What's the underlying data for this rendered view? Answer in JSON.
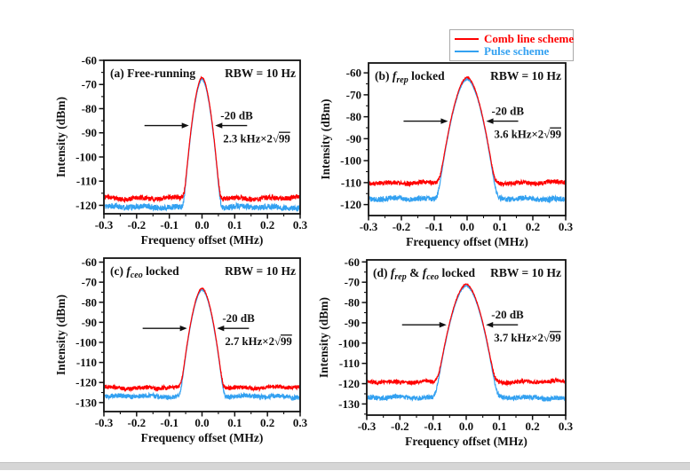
{
  "figure": {
    "background": "#ffffff",
    "colors": {
      "red": "#ff0000",
      "blue": "#33a1f1",
      "axis": "#111111"
    },
    "legend": {
      "items": [
        {
          "label": "Comb line scheme",
          "color_key": "red"
        },
        {
          "label": "Pulse scheme",
          "color_key": "blue"
        }
      ]
    },
    "xlabel": "Frequency offset (MHz)",
    "ylabel": "Intensity (dBm)",
    "rbw_label": "RBW = 10 Hz"
  },
  "chart_data": [
    {
      "type": "line",
      "panel": "a",
      "title_segments": [
        {
          "t": "(a) Free-running",
          "s": "p"
        }
      ],
      "rbw": "RBW = 10 Hz",
      "xlabel": "Frequency offset (MHz)",
      "ylabel": "Intensity (dBm)",
      "xlim": [
        -0.3,
        0.3
      ],
      "xticks": [
        "-0.3",
        "-0.2",
        "-0.1",
        "0.0",
        "0.1",
        "0.2",
        "0.3"
      ],
      "ylim": [
        -60,
        -123.5
      ],
      "yticks": [
        "-60",
        "-70",
        "-80",
        "-90",
        "-100",
        "-110",
        "-120"
      ],
      "grid": false,
      "peak_center_mhz": 0.0,
      "linewidth_khz": 2.3,
      "series": [
        {
          "name": "Pulse scheme",
          "color_key": "blue",
          "noise_floor_dbm": -120.8,
          "peak_dbm": -67.8
        },
        {
          "name": "Comb line scheme",
          "color_key": "red",
          "noise_floor_dbm": -117.0,
          "peak_dbm": -67.0
        }
      ],
      "annotation": {
        "line1": "-20 dB",
        "line2_segments": [
          {
            "t": "2.3 kHz×2",
            "s": "p"
          },
          {
            "t": "√",
            "s": "p"
          },
          {
            "t": "99",
            "s": "o"
          }
        ]
      }
    },
    {
      "type": "line",
      "panel": "b",
      "title_segments": [
        {
          "t": "(b) ",
          "s": "p"
        },
        {
          "t": "f",
          "s": "i"
        },
        {
          "t": "rep",
          "s": "sub"
        },
        {
          "t": " locked",
          "s": "p"
        }
      ],
      "rbw": "RBW = 10 Hz",
      "xlabel": "Frequency offset (MHz)",
      "ylabel": "Intensity (dBm)",
      "xlim": [
        -0.3,
        0.3
      ],
      "xticks": [
        "-0.3",
        "-0.2",
        "-0.1",
        "0.0",
        "0.1",
        "0.2",
        "0.3"
      ],
      "ylim": [
        -55.5,
        -125
      ],
      "yticks": [
        "-60",
        "-70",
        "-80",
        "-90",
        "-100",
        "-110",
        "-120"
      ],
      "grid": false,
      "peak_center_mhz": 0.0,
      "linewidth_khz": 3.6,
      "series": [
        {
          "name": "Pulse scheme",
          "color_key": "blue",
          "noise_floor_dbm": -117.5,
          "peak_dbm": -62.8
        },
        {
          "name": "Comb line scheme",
          "color_key": "red",
          "noise_floor_dbm": -110.0,
          "peak_dbm": -62.0
        }
      ],
      "annotation": {
        "line1": "-20 dB",
        "line2_segments": [
          {
            "t": "3.6 kHz×2",
            "s": "p"
          },
          {
            "t": "√",
            "s": "p"
          },
          {
            "t": "99",
            "s": "o"
          }
        ]
      }
    },
    {
      "type": "line",
      "panel": "c",
      "title_segments": [
        {
          "t": "(c) ",
          "s": "p"
        },
        {
          "t": "f",
          "s": "i"
        },
        {
          "t": "ceo",
          "s": "sub"
        },
        {
          "t": " locked",
          "s": "p"
        }
      ],
      "rbw": "RBW = 10 Hz",
      "xlabel": "Frequency offset (MHz)",
      "ylabel": "Intensity (dBm)",
      "xlim": [
        -0.3,
        0.3
      ],
      "xticks": [
        "-0.3",
        "-0.2",
        "-0.1",
        "0.0",
        "0.1",
        "0.2",
        "0.3"
      ],
      "ylim": [
        -58,
        -134.5
      ],
      "yticks": [
        "-60",
        "-70",
        "-80",
        "-90",
        "-100",
        "-110",
        "-120",
        "-130"
      ],
      "grid": false,
      "peak_center_mhz": 0.0,
      "linewidth_khz": 2.7,
      "series": [
        {
          "name": "Pulse scheme",
          "color_key": "blue",
          "noise_floor_dbm": -127.0,
          "peak_dbm": -73.8
        },
        {
          "name": "Comb line scheme",
          "color_key": "red",
          "noise_floor_dbm": -122.5,
          "peak_dbm": -73.0
        }
      ],
      "annotation": {
        "line1": "-20 dB",
        "line2_segments": [
          {
            "t": "2.7 kHz×2",
            "s": "p"
          },
          {
            "t": "√",
            "s": "p"
          },
          {
            "t": "99",
            "s": "o"
          }
        ]
      }
    },
    {
      "type": "line",
      "panel": "d",
      "title_segments": [
        {
          "t": "(d) ",
          "s": "p"
        },
        {
          "t": "f",
          "s": "i"
        },
        {
          "t": "rep",
          "s": "sub"
        },
        {
          "t": " & ",
          "s": "p"
        },
        {
          "t": "f",
          "s": "i"
        },
        {
          "t": "ceo",
          "s": "sub"
        },
        {
          "t": " locked",
          "s": "p"
        }
      ],
      "rbw": "RBW = 10 Hz",
      "xlabel": "Frequency offset (MHz)",
      "ylabel": "Intensity (dBm)",
      "xlim": [
        -0.3,
        0.3
      ],
      "xticks": [
        "-0.3",
        "-0.2",
        "-0.1",
        "0.0",
        "0.1",
        "0.2",
        "0.3"
      ],
      "ylim": [
        -59,
        -135.5
      ],
      "yticks": [
        "-60",
        "-70",
        "-80",
        "-90",
        "-100",
        "-110",
        "-120",
        "-130"
      ],
      "grid": false,
      "peak_center_mhz": 0.0,
      "linewidth_khz": 3.7,
      "series": [
        {
          "name": "Pulse scheme",
          "color_key": "blue",
          "noise_floor_dbm": -127.0,
          "peak_dbm": -71.8
        },
        {
          "name": "Comb line scheme",
          "color_key": "red",
          "noise_floor_dbm": -119.0,
          "peak_dbm": -71.0
        }
      ],
      "annotation": {
        "line1": "-20 dB",
        "line2_segments": [
          {
            "t": "3.7 kHz×2",
            "s": "p"
          },
          {
            "t": "√",
            "s": "p"
          },
          {
            "t": "99",
            "s": "o"
          }
        ]
      }
    }
  ]
}
